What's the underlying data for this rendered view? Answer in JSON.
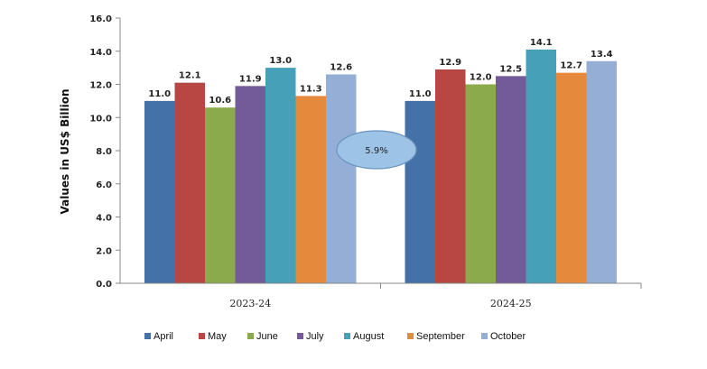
{
  "chart_data": {
    "type": "bar",
    "categories": [
      "2023-24",
      "2024-25"
    ],
    "series": [
      {
        "name": "April",
        "color": "#4472A8",
        "values": [
          11.0,
          11.0
        ]
      },
      {
        "name": "May",
        "color": "#B84744",
        "values": [
          12.1,
          12.9
        ]
      },
      {
        "name": "June",
        "color": "#8BAA4B",
        "values": [
          10.6,
          12.0
        ]
      },
      {
        "name": "July",
        "color": "#735A98",
        "values": [
          11.9,
          12.5
        ]
      },
      {
        "name": "August",
        "color": "#45A0B8",
        "values": [
          13.0,
          14.1
        ]
      },
      {
        "name": "September",
        "color": "#E58A3C",
        "values": [
          11.3,
          12.7
        ]
      },
      {
        "name": "October",
        "color": "#95AED6",
        "values": [
          12.6,
          13.4
        ]
      }
    ],
    "data_labels": [
      [
        "11.0",
        "12.1",
        "10.6",
        "11.9",
        "13.0",
        "11.3",
        "12.6"
      ],
      [
        "11.0",
        "12.9",
        "12.0",
        "12.5",
        "14.1",
        "12.7",
        "13.4"
      ]
    ],
    "ylabel": "Values in US$ Billion",
    "ylim": [
      0,
      16
    ],
    "yticks": [
      "0.0",
      "2.0",
      "4.0",
      "6.0",
      "8.0",
      "10.0",
      "12.0",
      "14.0",
      "16.0"
    ],
    "grid": false,
    "legend_position": "bottom",
    "annotation": "5.9%"
  }
}
